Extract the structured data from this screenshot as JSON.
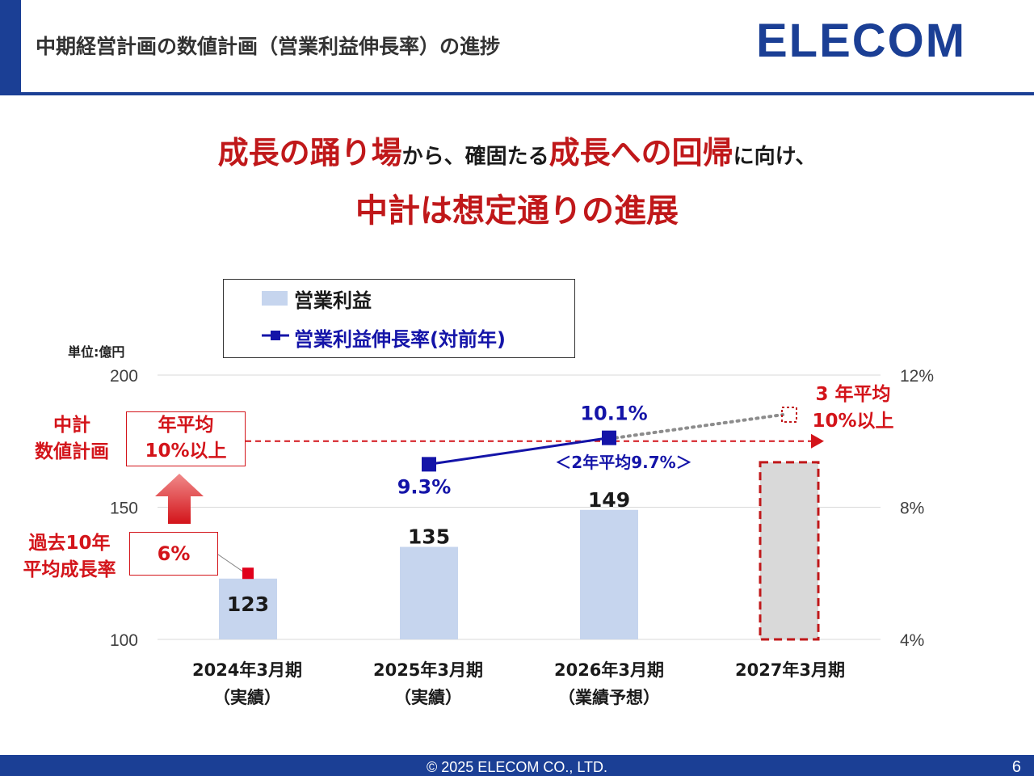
{
  "header": {
    "title": "中期経営計画の数値計画（営業利益伸長率）の進捗",
    "logo": "ELECOM",
    "accent_color": "#1b3f95"
  },
  "headline": {
    "line1_a": "成長の踊り場",
    "line1_b": "から、確固たる",
    "line1_c": "成長への回帰",
    "line1_d": "に向け、",
    "line2": "中計は想定通りの進展",
    "emphasis_color": "#c0181a"
  },
  "chart_data": {
    "type": "bar",
    "unit_label": "単位:億円",
    "categories": [
      [
        "2024年3月期",
        "（実績）"
      ],
      [
        "2025年3月期",
        "（実績）"
      ],
      [
        "2026年3月期",
        "（業績予想）"
      ],
      [
        "2027年3月期",
        ""
      ]
    ],
    "series": [
      {
        "name": "営業利益",
        "type": "bar",
        "values": [
          123,
          135,
          149,
          null
        ],
        "labels": [
          "123",
          "135",
          "149",
          ""
        ],
        "color": "#c6d5ee"
      },
      {
        "name": "営業利益伸長率(対前年)",
        "type": "line",
        "axis": "right",
        "values": [
          null,
          9.3,
          10.1,
          null
        ],
        "labels": [
          "",
          "9.3%",
          "10.1%",
          ""
        ],
        "color": "#1414a8"
      }
    ],
    "placeholder_bar": {
      "category_index": 3,
      "value": 167,
      "fill": "#d9d9d9",
      "border": "#c0181a"
    },
    "projection_point": {
      "category_index": 3,
      "value": 10.8
    },
    "past_marker": {
      "category_index": 0,
      "value": 6
    },
    "target_line_value": 10,
    "y_left": {
      "ticks": [
        "100",
        "150",
        "200"
      ],
      "values": [
        100,
        150,
        200
      ],
      "min": 100,
      "max": 200
    },
    "y_right": {
      "ticks": [
        "4%",
        "8%",
        "12%"
      ],
      "values": [
        4,
        8,
        12
      ],
      "min": 4,
      "max": 12
    },
    "grid": true,
    "legend_placement": "top"
  },
  "annotations": {
    "plan_label": [
      "中計",
      "数値計画"
    ],
    "plan_box": [
      "年平均",
      "10%以上"
    ],
    "past_label": [
      "過去10年",
      "平均成長率"
    ],
    "past_value": "6%",
    "target_label": [
      "3 年平均",
      "10%以上"
    ],
    "avg_note": "＜2年平均9.7%＞",
    "red_color": "#d3141a"
  },
  "footer": {
    "copyright": "© 2025 ELECOM CO., LTD.",
    "page": "6"
  }
}
